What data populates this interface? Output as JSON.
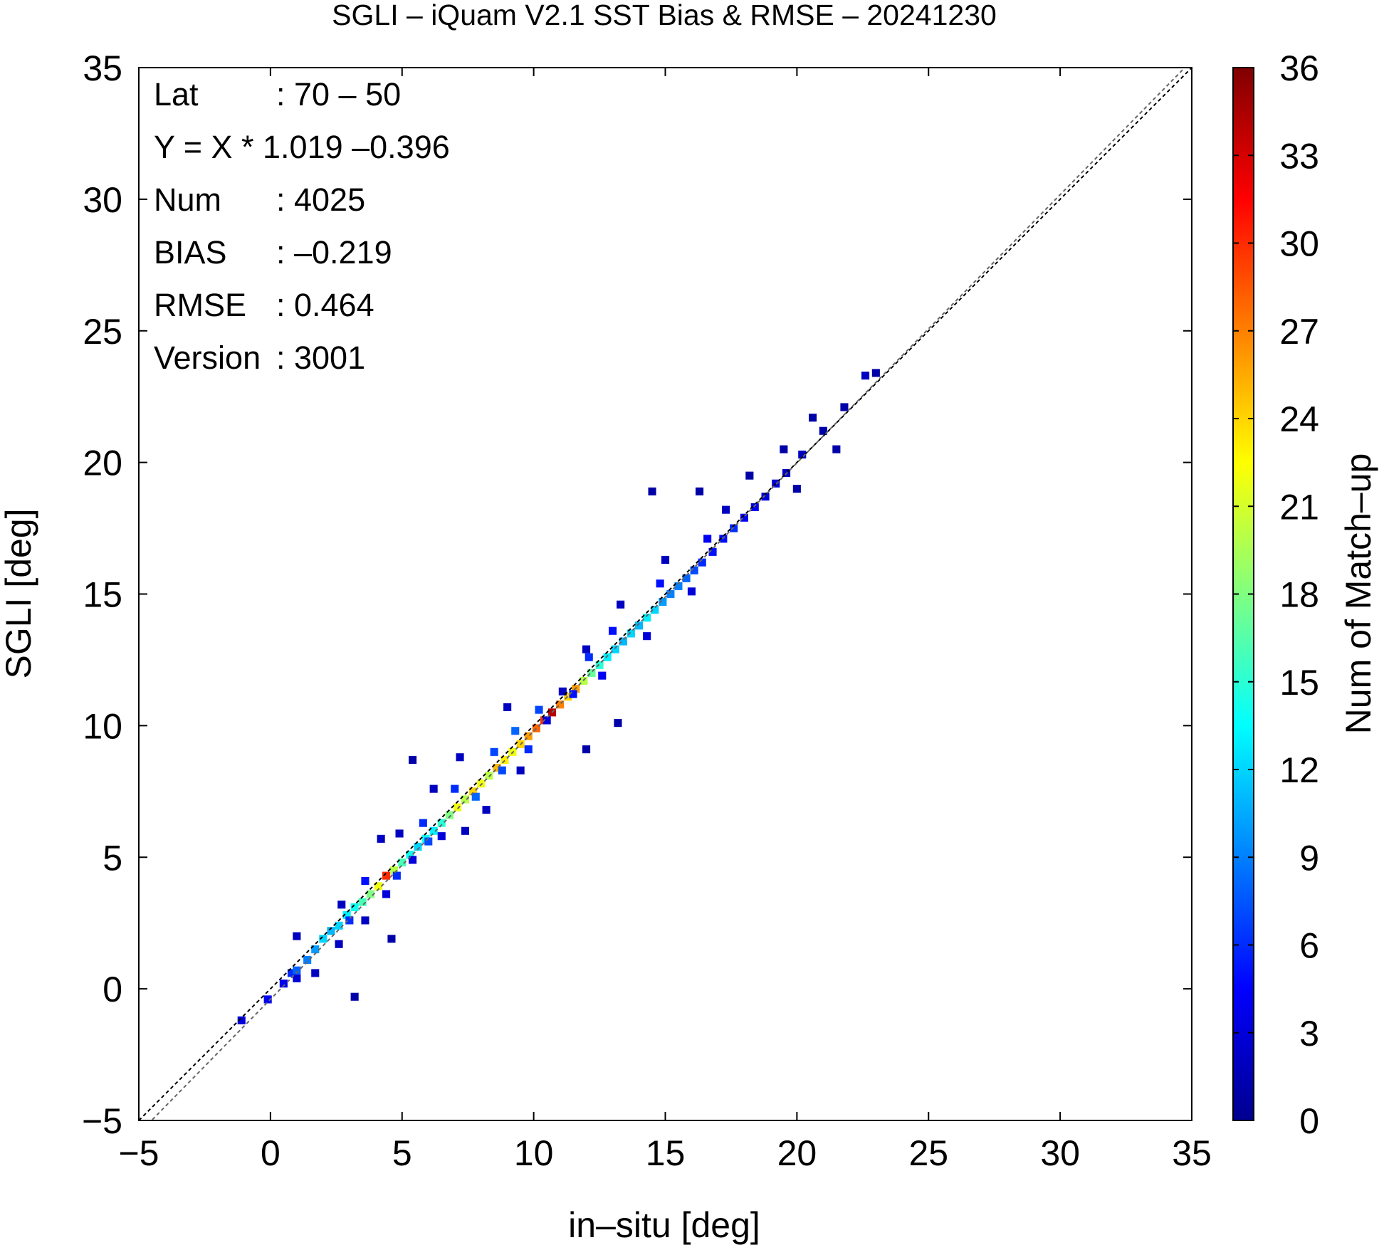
{
  "chart_data": {
    "type": "heatmap",
    "title": "SGLI – iQuam V2.1 SST Bias & RMSE  – 20241230",
    "xlabel": "in–situ [deg]",
    "ylabel": "SGLI [deg]",
    "xlim": [
      -5,
      35
    ],
    "ylim": [
      -5,
      35
    ],
    "x_ticks": [
      -5,
      0,
      5,
      10,
      15,
      20,
      25,
      30,
      35
    ],
    "y_ticks": [
      -5,
      0,
      5,
      10,
      15,
      20,
      25,
      30,
      35
    ],
    "x_tick_labels": [
      "−5",
      "0",
      "5",
      "10",
      "15",
      "20",
      "25",
      "30",
      "35"
    ],
    "y_tick_labels": [
      "−5",
      "0",
      "5",
      "10",
      "15",
      "20",
      "25",
      "30",
      "35"
    ],
    "colorbar": {
      "label": "Num of Match–up",
      "min": 0,
      "max": 36,
      "ticks": [
        0,
        3,
        6,
        9,
        12,
        15,
        18,
        21,
        24,
        27,
        30,
        33,
        36
      ],
      "tick_labels": [
        "0",
        "3",
        "6",
        "9",
        "12",
        "15",
        "18",
        "21",
        "24",
        "27",
        "30",
        "33",
        "36"
      ],
      "colormap": [
        "#00008f",
        "#0000ff",
        "#0080ff",
        "#00ffff",
        "#80ff80",
        "#ffff00",
        "#ff8000",
        "#ff0000",
        "#800000"
      ]
    },
    "reference_lines": [
      {
        "name": "1:1 line",
        "style": "dashed",
        "color": "#000000",
        "slope": 1.0,
        "intercept": 0.0
      },
      {
        "name": "regression",
        "style": "dashed",
        "color": "#666666",
        "slope": 1.019,
        "intercept": -0.396
      }
    ],
    "stats": [
      {
        "label": "Lat",
        "value": ": 70 – 50"
      },
      {
        "label": "Y = X * 1.019 –0.396",
        "value": ""
      },
      {
        "label": "Num",
        "value": ": 4025"
      },
      {
        "label": "BIAS",
        "value": ": –0.219"
      },
      {
        "label": "RMSE",
        "value": ": 0.464"
      },
      {
        "label": "Version",
        "value": ": 3001"
      }
    ],
    "cells": [
      [
        -1.1,
        -1.2,
        3
      ],
      [
        -0.1,
        -0.4,
        4
      ],
      [
        0.5,
        0.2,
        4
      ],
      [
        0.8,
        0.6,
        6
      ],
      [
        1.0,
        0.7,
        8
      ],
      [
        1.4,
        1.1,
        9
      ],
      [
        1.7,
        1.5,
        10
      ],
      [
        2.0,
        1.9,
        12
      ],
      [
        2.3,
        2.2,
        11
      ],
      [
        2.6,
        2.4,
        12
      ],
      [
        2.9,
        2.8,
        13
      ],
      [
        3.2,
        3.1,
        14
      ],
      [
        3.5,
        3.3,
        16
      ],
      [
        3.8,
        3.6,
        18
      ],
      [
        4.1,
        3.9,
        22
      ],
      [
        4.4,
        4.3,
        30
      ],
      [
        4.7,
        4.5,
        20
      ],
      [
        5.0,
        4.8,
        16
      ],
      [
        5.3,
        5.1,
        14
      ],
      [
        5.6,
        5.4,
        12
      ],
      [
        5.9,
        5.7,
        14
      ],
      [
        6.2,
        6.0,
        13
      ],
      [
        6.5,
        6.3,
        15
      ],
      [
        6.8,
        6.6,
        18
      ],
      [
        7.1,
        6.9,
        22
      ],
      [
        7.4,
        7.2,
        20
      ],
      [
        7.7,
        7.5,
        24
      ],
      [
        8.0,
        7.8,
        22
      ],
      [
        8.3,
        8.1,
        20
      ],
      [
        8.6,
        8.4,
        25
      ],
      [
        8.9,
        8.7,
        23
      ],
      [
        9.2,
        9.0,
        22
      ],
      [
        9.5,
        9.3,
        24
      ],
      [
        9.8,
        9.6,
        26
      ],
      [
        10.1,
        9.9,
        28
      ],
      [
        10.4,
        10.2,
        30
      ],
      [
        10.7,
        10.5,
        34
      ],
      [
        11.0,
        10.8,
        27
      ],
      [
        11.3,
        11.1,
        24
      ],
      [
        11.6,
        11.4,
        26
      ],
      [
        11.9,
        11.7,
        20
      ],
      [
        12.2,
        12.0,
        17
      ],
      [
        12.5,
        12.3,
        15
      ],
      [
        12.8,
        12.6,
        13
      ],
      [
        13.1,
        12.9,
        12
      ],
      [
        13.4,
        13.2,
        11
      ],
      [
        13.7,
        13.5,
        12
      ],
      [
        14.0,
        13.8,
        11
      ],
      [
        14.3,
        14.1,
        13
      ],
      [
        14.6,
        14.4,
        12
      ],
      [
        14.9,
        14.7,
        10
      ],
      [
        15.2,
        15.0,
        9
      ],
      [
        15.5,
        15.3,
        9
      ],
      [
        15.8,
        15.6,
        8
      ],
      [
        16.1,
        15.9,
        7
      ],
      [
        16.4,
        16.2,
        6
      ],
      [
        16.8,
        16.6,
        5
      ],
      [
        17.2,
        17.1,
        5
      ],
      [
        17.6,
        17.5,
        6
      ],
      [
        18.0,
        17.9,
        4
      ],
      [
        18.4,
        18.3,
        4
      ],
      [
        18.8,
        18.7,
        3
      ],
      [
        19.2,
        19.2,
        3
      ],
      [
        19.6,
        19.6,
        2
      ],
      [
        20.2,
        20.3,
        2
      ],
      [
        21.0,
        21.2,
        1
      ],
      [
        21.8,
        22.1,
        1
      ],
      [
        22.6,
        23.3,
        2
      ],
      [
        23.0,
        23.4,
        1
      ],
      [
        4.9,
        5.9,
        2
      ],
      [
        3.2,
        -0.3,
        1
      ],
      [
        4.6,
        1.9,
        1
      ],
      [
        13.2,
        10.1,
        1
      ],
      [
        12.0,
        9.1,
        1
      ],
      [
        14.5,
        18.9,
        1
      ],
      [
        16.3,
        18.9,
        1
      ],
      [
        5.4,
        8.7,
        1
      ],
      [
        11.1,
        11.3,
        2
      ],
      [
        9.0,
        10.7,
        2
      ],
      [
        7.2,
        8.8,
        2
      ],
      [
        6.2,
        7.6,
        2
      ],
      [
        4.2,
        5.7,
        2
      ],
      [
        2.7,
        3.2,
        2
      ],
      [
        1.0,
        2.0,
        2
      ],
      [
        17.3,
        18.2,
        2
      ],
      [
        18.2,
        19.5,
        1
      ],
      [
        20.6,
        21.7,
        1
      ],
      [
        21.5,
        20.5,
        1
      ],
      [
        20.0,
        19.0,
        1
      ],
      [
        19.5,
        20.5,
        1
      ],
      [
        15.0,
        16.3,
        2
      ],
      [
        13.3,
        14.6,
        2
      ],
      [
        12.0,
        12.9,
        2
      ],
      [
        10.5,
        10.2,
        3
      ],
      [
        9.5,
        8.3,
        2
      ],
      [
        8.2,
        6.8,
        2
      ],
      [
        7.4,
        6.0,
        2
      ],
      [
        6.5,
        5.8,
        3
      ],
      [
        5.4,
        4.9,
        3
      ],
      [
        4.4,
        3.6,
        3
      ],
      [
        3.6,
        2.6,
        2
      ],
      [
        2.6,
        1.7,
        2
      ],
      [
        1.7,
        0.6,
        2
      ],
      [
        1.0,
        0.4,
        3
      ],
      [
        16.0,
        15.1,
        3
      ],
      [
        14.3,
        13.4,
        3
      ],
      [
        12.6,
        11.9,
        4
      ],
      [
        11.5,
        11.2,
        5
      ],
      [
        9.8,
        9.1,
        6
      ],
      [
        8.8,
        8.3,
        7
      ],
      [
        7.8,
        7.3,
        8
      ],
      [
        6.0,
        5.6,
        7
      ],
      [
        4.8,
        4.3,
        6
      ],
      [
        3.0,
        2.6,
        6
      ],
      [
        9.3,
        9.8,
        8
      ],
      [
        10.2,
        10.6,
        7
      ],
      [
        8.5,
        9.0,
        7
      ],
      [
        7.0,
        7.6,
        6
      ],
      [
        5.8,
        6.3,
        6
      ],
      [
        3.6,
        4.1,
        5
      ],
      [
        13.0,
        13.6,
        5
      ],
      [
        14.8,
        15.4,
        5
      ],
      [
        12.1,
        12.6,
        6
      ],
      [
        16.6,
        17.1,
        4
      ]
    ]
  }
}
